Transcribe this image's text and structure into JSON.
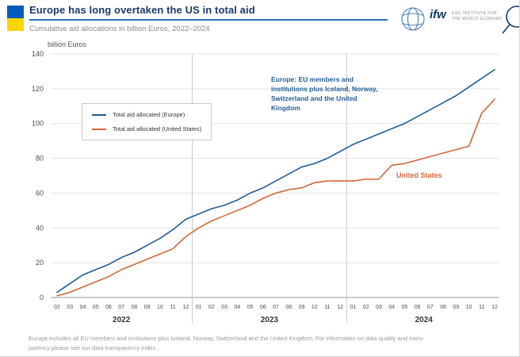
{
  "header": {
    "title": "Europe has long overtaken the US in total aid",
    "subtitle": "Cumulative aid allocations in billion Euros, 2022–2024"
  },
  "logo": {
    "abbr": "ifw",
    "line1": "KIEL INSTITUTE FOR",
    "line2": "THE WORLD ECONOMY"
  },
  "colors": {
    "title_navy": "#1b3a6b",
    "accent_rule_blue": "#2c6fad",
    "europe_line": "#1f5c99",
    "us_line": "#d4683a",
    "flag_blue": "#005bbb",
    "flag_yellow": "#ffd500",
    "grid": "#e4e4e4",
    "axis": "#9a9a9a"
  },
  "chart_data": {
    "type": "line",
    "title": "Europe has long overtaken the US in total aid",
    "subtitle": "Cumulative aid allocations in billion Euros, 2022–2024",
    "ylabel": "billion Euros",
    "xlabel": "",
    "ylim": [
      0,
      140
    ],
    "ytick_step": 20,
    "grid": "horizontal",
    "legend_position": "upper-left-inside",
    "x_months": [
      "02",
      "03",
      "04",
      "05",
      "06",
      "07",
      "08",
      "09",
      "10",
      "11",
      "12",
      "01",
      "02",
      "03",
      "04",
      "05",
      "06",
      "07",
      "08",
      "09",
      "10",
      "11",
      "12",
      "01",
      "02",
      "03",
      "04",
      "05",
      "06",
      "07",
      "08",
      "09",
      "10",
      "11",
      "12"
    ],
    "year_groups": [
      {
        "year": "2022",
        "count": 11
      },
      {
        "year": "2023",
        "count": 12
      },
      {
        "year": "2024",
        "count": 12
      }
    ],
    "series": [
      {
        "name": "Total aid allocated (Europe)",
        "color": "#1f5c99",
        "values": [
          3,
          8,
          13,
          16,
          19,
          23,
          26,
          30,
          34,
          39,
          45,
          48,
          51,
          53,
          56,
          60,
          63,
          67,
          71,
          75,
          77,
          80,
          84,
          88,
          91,
          94,
          97,
          100,
          104,
          108,
          112,
          116,
          121,
          126,
          131
        ]
      },
      {
        "name": "Total aid allocated (United States)",
        "color": "#d4683a",
        "values": [
          1,
          3,
          6,
          9,
          12,
          16,
          19,
          22,
          25,
          28,
          35,
          40,
          44,
          47,
          50,
          53,
          57,
          60,
          62,
          63,
          66,
          67,
          67,
          67,
          68,
          68,
          76,
          77,
          79,
          81,
          83,
          85,
          87,
          106,
          114
        ]
      }
    ],
    "annotations": {
      "europe": "Europe: EU members and institutions plus Iceland, Norway, Switzerland and the United Kingdom",
      "us": "United States"
    }
  },
  "footer": {
    "line1": "Europe includes all EU members and institutions plus Iceland, Norway, Switzerland and the United Kingdom. For information on data quality and trans-",
    "line2": "parency please see our data transparency index."
  }
}
